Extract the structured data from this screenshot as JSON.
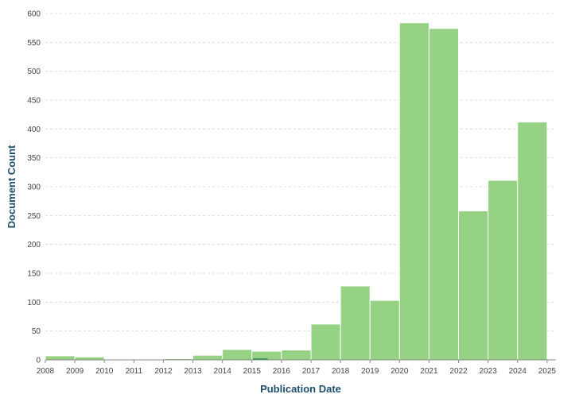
{
  "chart_data": {
    "type": "bar",
    "title": "",
    "xlabel": "Publication Date",
    "ylabel": "Document Count",
    "ylim": [
      0,
      600
    ],
    "y_ticks": [
      0,
      50,
      100,
      150,
      200,
      250,
      300,
      350,
      400,
      450,
      500,
      550,
      600
    ],
    "x_ticks": [
      "2008",
      "2009",
      "2010",
      "2011",
      "2012",
      "2013",
      "2014",
      "2015",
      "2016",
      "2017",
      "2018",
      "2019",
      "2020",
      "2021",
      "2022",
      "2023",
      "2024",
      "2025"
    ],
    "grid": true,
    "bar_color": "#95d283",
    "highlight_color": "#2e8b57",
    "bins": [
      {
        "start": 2008.0,
        "end": 2009.0,
        "value": 7
      },
      {
        "start": 2009.0,
        "end": 2010.0,
        "value": 5
      },
      {
        "start": 2010.0,
        "end": 2011.0,
        "value": 1
      },
      {
        "start": 2011.0,
        "end": 2012.0,
        "value": 1
      },
      {
        "start": 2012.0,
        "end": 2013.0,
        "value": 2
      },
      {
        "start": 2013.0,
        "end": 2014.0,
        "value": 8
      },
      {
        "start": 2014.0,
        "end": 2015.0,
        "value": 18
      },
      {
        "start": 2015.0,
        "end": 2016.0,
        "value": 15
      },
      {
        "start": 2016.0,
        "end": 2017.0,
        "value": 17
      },
      {
        "start": 2017.0,
        "end": 2018.0,
        "value": 62
      },
      {
        "start": 2018.0,
        "end": 2019.0,
        "value": 128
      },
      {
        "start": 2019.0,
        "end": 2020.0,
        "value": 103
      },
      {
        "start": 2020.0,
        "end": 2021.0,
        "value": 584
      },
      {
        "start": 2021.0,
        "end": 2022.0,
        "value": 574
      },
      {
        "start": 2022.0,
        "end": 2023.0,
        "value": 258
      },
      {
        "start": 2023.0,
        "end": 2024.0,
        "value": 311
      },
      {
        "start": 2024.0,
        "end": 2025.0,
        "value": 412
      }
    ]
  }
}
